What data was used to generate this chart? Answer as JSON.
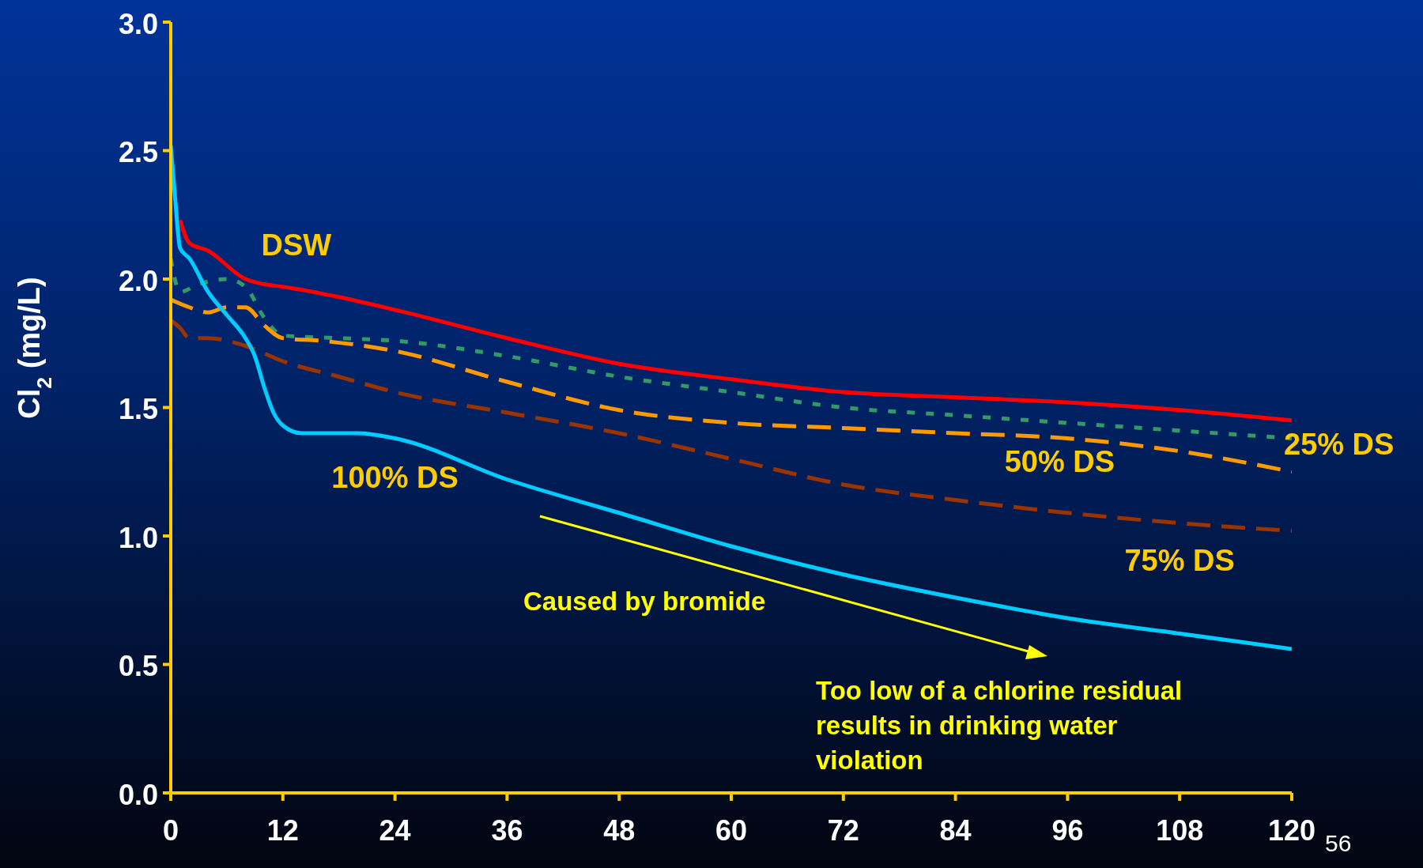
{
  "chart_data": {
    "type": "line",
    "ylabel": "Cl$_{2}$ (mg/L)",
    "xlim": [
      0,
      120
    ],
    "xticks": [
      0,
      12,
      24,
      36,
      48,
      60,
      72,
      84,
      96,
      108,
      120
    ],
    "ylim": [
      0,
      3
    ],
    "yticks": [
      {
        "value": 0,
        "label": "0.0"
      },
      {
        "value": 0.5,
        "label": "0.5"
      },
      {
        "value": 1,
        "label": "1.0"
      },
      {
        "value": 1.5,
        "label": "1.5"
      },
      {
        "value": 2,
        "label": "2.0"
      },
      {
        "value": 2.5,
        "label": "2.5"
      },
      {
        "value": 3,
        "label": "3.0"
      }
    ],
    "grid": false,
    "legend": false,
    "marker": "none",
    "series": [
      {
        "name": "DSW",
        "color": "#ff0000",
        "line_style": "solid",
        "x": [
          1,
          2,
          4,
          8,
          10,
          12,
          18,
          24,
          36,
          48,
          60,
          72,
          84,
          96,
          108,
          120
        ],
        "values": [
          2.23,
          2.14,
          2.11,
          2.0,
          1.98,
          1.97,
          1.93,
          1.88,
          1.77,
          1.67,
          1.61,
          1.56,
          1.54,
          1.52,
          1.49,
          1.45
        ]
      },
      {
        "name": "25% DS",
        "color": "#339966",
        "line_style": "dotted",
        "x": [
          0,
          1,
          3,
          6,
          8,
          10,
          12,
          18,
          24,
          36,
          48,
          60,
          72,
          84,
          96,
          108,
          120
        ],
        "values": [
          2.08,
          1.95,
          1.98,
          2.0,
          1.97,
          1.85,
          1.78,
          1.77,
          1.76,
          1.7,
          1.62,
          1.56,
          1.5,
          1.47,
          1.44,
          1.41,
          1.38
        ]
      },
      {
        "name": "50% DS",
        "color": "#ff9900",
        "line_style": "dashed",
        "x": [
          0,
          2,
          4,
          6,
          8,
          10,
          12,
          16,
          24,
          36,
          48,
          60,
          72,
          84,
          96,
          108,
          120
        ],
        "values": [
          1.92,
          1.89,
          1.87,
          1.89,
          1.89,
          1.82,
          1.77,
          1.76,
          1.72,
          1.6,
          1.49,
          1.44,
          1.42,
          1.4,
          1.38,
          1.33,
          1.25
        ]
      },
      {
        "name": "75% DS",
        "color": "#993300",
        "line_style": "dashed",
        "x": [
          0,
          1,
          2,
          4,
          8,
          12,
          18,
          24,
          36,
          48,
          60,
          72,
          84,
          96,
          108,
          120
        ],
        "values": [
          1.84,
          1.81,
          1.77,
          1.77,
          1.74,
          1.68,
          1.62,
          1.56,
          1.48,
          1.4,
          1.3,
          1.2,
          1.14,
          1.09,
          1.05,
          1.02
        ]
      },
      {
        "name": "100% DS",
        "color": "#00ccff",
        "line_style": "solid",
        "x": [
          0,
          0.5,
          1,
          2,
          4,
          6,
          8,
          9,
          10,
          11,
          12,
          14,
          20,
          24,
          36,
          48,
          60,
          72,
          84,
          96,
          108,
          120
        ],
        "values": [
          2.52,
          2.3,
          2.12,
          2.08,
          1.95,
          1.86,
          1.77,
          1.7,
          1.58,
          1.48,
          1.43,
          1.4,
          1.4,
          1.38,
          1.22,
          1.09,
          0.96,
          0.85,
          0.76,
          0.68,
          0.62,
          0.56
        ]
      }
    ],
    "annotations": [
      "Caused by bromide",
      "Too low of a chlorine residual results in drinking water violation",
      "56"
    ]
  }
}
